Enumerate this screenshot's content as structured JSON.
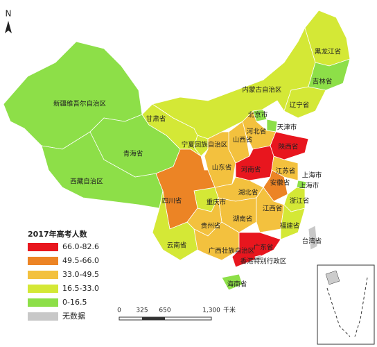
{
  "north": "N",
  "regions": [
    {
      "name": "新疆维吾尔自治区",
      "color": "#8ddf48"
    },
    {
      "name": "西藏自治区",
      "color": "#8ddf48"
    },
    {
      "name": "青海省",
      "color": "#8ddf48"
    },
    {
      "name": "甘肃省",
      "color": "#d4e836"
    },
    {
      "name": "内蒙古自治区",
      "color": "#d4e836"
    },
    {
      "name": "黑龙江省",
      "color": "#d4e836"
    },
    {
      "name": "吉林省",
      "color": "#8ddf48"
    },
    {
      "name": "辽宁省",
      "color": "#d4e836"
    },
    {
      "name": "北京市",
      "color": "#8ddf48"
    },
    {
      "name": "天津市",
      "color": "#8ddf48"
    },
    {
      "name": "河北省",
      "color": "#f3c13e"
    },
    {
      "name": "山西省",
      "color": "#f3c13e"
    },
    {
      "name": "宁夏回族自治区",
      "color": "#d4e836"
    },
    {
      "name": "陕西省",
      "color": "#f3c13e"
    },
    {
      "name": "山东省",
      "color": "#e8161e"
    },
    {
      "name": "河南省",
      "color": "#e8161e"
    },
    {
      "name": "江苏省",
      "color": "#f3c13e"
    },
    {
      "name": "安徽省",
      "color": "#ec8425"
    },
    {
      "name": "上海市",
      "color": "#8ddf48"
    },
    {
      "name": "上海市",
      "color": "#8ddf48"
    },
    {
      "name": "浙江省",
      "color": "#d4e836"
    },
    {
      "name": "湖北省",
      "color": "#f3c13e"
    },
    {
      "name": "重庆市",
      "color": "#d4e836"
    },
    {
      "name": "四川省",
      "color": "#ec8425"
    },
    {
      "name": "湖南省",
      "color": "#f3c13e"
    },
    {
      "name": "江西省",
      "color": "#f3c13e"
    },
    {
      "name": "福建省",
      "color": "#d4e836"
    },
    {
      "name": "贵州省",
      "color": "#f3c13e"
    },
    {
      "name": "云南省",
      "color": "#d4e836"
    },
    {
      "name": "广西壮族自治区",
      "color": "#f3c13e"
    },
    {
      "name": "广东省",
      "color": "#e8161e"
    },
    {
      "name": "香港特别行政区",
      "color": "#c8c8c8"
    },
    {
      "name": "海南省",
      "color": "#8ddf48"
    },
    {
      "name": "台湾省",
      "color": "#c8c8c8"
    }
  ],
  "legend": {
    "title": "2017年高考人数",
    "items": [
      {
        "label": "66.0-82.6",
        "color": "#e8161e"
      },
      {
        "label": "49.5-66.0",
        "color": "#ec8425"
      },
      {
        "label": "33.0-49.5",
        "color": "#f3c13e"
      },
      {
        "label": "16.5-33.0",
        "color": "#d4e836"
      },
      {
        "label": "0-16.5",
        "color": "#8ddf48"
      },
      {
        "label": "无数据",
        "color": "#c8c8c8"
      }
    ]
  },
  "scale": {
    "labels": [
      "0",
      "325",
      "650",
      "1,300",
      "千米"
    ]
  }
}
